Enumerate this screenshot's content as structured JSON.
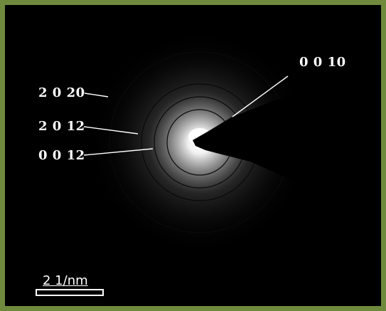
{
  "image": {
    "frame_color": "#6f8a3d",
    "background": "#000000"
  },
  "labels": {
    "ring_0010": "0 0 10",
    "ring_2020": "2 0 20",
    "ring_2012": "2 0 12",
    "ring_0012": "0 0 12"
  },
  "scale_bar": {
    "text": "2 1/nm"
  }
}
